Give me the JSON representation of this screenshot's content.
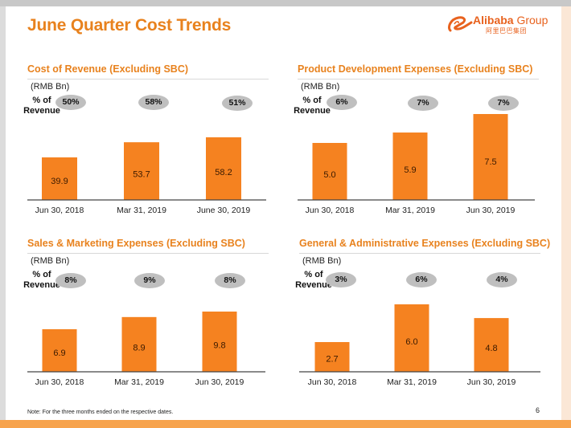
{
  "page": {
    "title": "June Quarter Cost Trends",
    "logo": {
      "name": "Alibaba",
      "suffix": "Group",
      "chinese": "阿里巴巴集团"
    },
    "note": "Note: For the three months ended on the respective dates.",
    "page_number": "6",
    "colors": {
      "accent": "#e8821e",
      "bar": "#f58220",
      "pill": "#bfbfbf",
      "bottom_band": "#f7a34d"
    }
  },
  "chart_data": [
    {
      "type": "bar",
      "title": "Cost of Revenue (Excluding SBC)",
      "ylabel": "(RMB Bn)",
      "pct_label": [
        "% of",
        "Revenue"
      ],
      "categories": [
        "Jun 30, 2018",
        "Mar 31, 2019",
        "June 30, 2019"
      ],
      "values": [
        39.9,
        53.7,
        58.2
      ],
      "value_labels": [
        "39.9",
        "53.7",
        "58.2"
      ],
      "pct_of_revenue": [
        "50%",
        "58%",
        "51%"
      ]
    },
    {
      "type": "bar",
      "title": "Product Development Expenses (Excluding SBC)",
      "ylabel": "(RMB Bn)",
      "pct_label": [
        "% of",
        "Revenue"
      ],
      "categories": [
        "Jun 30, 2018",
        "Mar 31, 2019",
        "Jun 30, 2019"
      ],
      "values": [
        5.0,
        5.9,
        7.5
      ],
      "value_labels": [
        "5.0",
        "5.9",
        "7.5"
      ],
      "pct_of_revenue": [
        "6%",
        "7%",
        "7%"
      ]
    },
    {
      "type": "bar",
      "title": "Sales & Marketing Expenses (Excluding SBC)",
      "ylabel": "(RMB Bn)",
      "pct_label": [
        "% of",
        "Revenue"
      ],
      "categories": [
        "Jun 30, 2018",
        "Mar 31, 2019",
        "Jun 30, 2019"
      ],
      "values": [
        6.9,
        8.9,
        9.8
      ],
      "value_labels": [
        "6.9",
        "8.9",
        "9.8"
      ],
      "pct_of_revenue": [
        "8%",
        "9%",
        "8%"
      ]
    },
    {
      "type": "bar",
      "title": "General & Administrative Expenses (Excluding SBC)",
      "ylabel": "(RMB Bn)",
      "pct_label": [
        "% of",
        "Revenue"
      ],
      "categories": [
        "Jun 30, 2018",
        "Mar 31, 2019",
        "Jun 30, 2019"
      ],
      "values": [
        2.7,
        6.0,
        4.8
      ],
      "value_labels": [
        "2.7",
        "6.0",
        "4.8"
      ],
      "pct_of_revenue": [
        "3%",
        "6%",
        "4%"
      ]
    }
  ]
}
